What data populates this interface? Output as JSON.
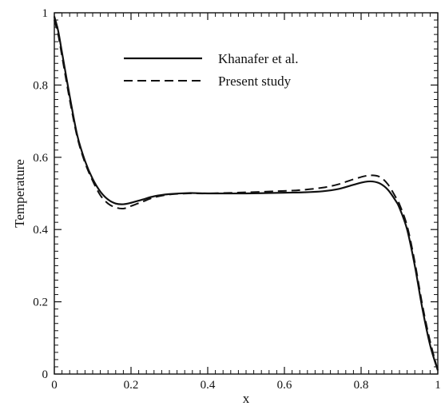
{
  "chart_data": {
    "type": "line",
    "xlabel": "x",
    "ylabel": "Temperature",
    "xlim": [
      0,
      1
    ],
    "ylim": [
      0,
      1
    ],
    "x_ticks": [
      "0",
      "0.2",
      "0.4",
      "0.6",
      "0.8",
      "1"
    ],
    "y_ticks": [
      "0",
      "0.2",
      "0.4",
      "0.6",
      "0.8",
      "1"
    ],
    "grid": false,
    "legend_position": "top-center",
    "series": [
      {
        "name": "Khanafer et al.",
        "style": "solid",
        "color": "#111111",
        "x": [
          0,
          0.01,
          0.02,
          0.04,
          0.06,
          0.08,
          0.1,
          0.12,
          0.14,
          0.16,
          0.18,
          0.2,
          0.23,
          0.26,
          0.3,
          0.35,
          0.4,
          0.5,
          0.6,
          0.65,
          0.7,
          0.74,
          0.78,
          0.81,
          0.83,
          0.85,
          0.87,
          0.89,
          0.9,
          0.92,
          0.94,
          0.96,
          0.98,
          1.0
        ],
        "y": [
          0.99,
          0.95,
          0.89,
          0.77,
          0.66,
          0.59,
          0.54,
          0.505,
          0.483,
          0.472,
          0.47,
          0.474,
          0.483,
          0.492,
          0.498,
          0.501,
          0.5,
          0.5,
          0.502,
          0.503,
          0.506,
          0.512,
          0.524,
          0.532,
          0.533,
          0.527,
          0.51,
          0.48,
          0.46,
          0.4,
          0.3,
          0.18,
          0.08,
          0.01
        ]
      },
      {
        "name": "Present study",
        "style": "dashed",
        "color": "#111111",
        "x": [
          0,
          0.01,
          0.02,
          0.04,
          0.06,
          0.08,
          0.1,
          0.12,
          0.14,
          0.16,
          0.18,
          0.2,
          0.23,
          0.26,
          0.3,
          0.35,
          0.4,
          0.5,
          0.6,
          0.65,
          0.7,
          0.74,
          0.78,
          0.81,
          0.83,
          0.85,
          0.87,
          0.89,
          0.9,
          0.92,
          0.94,
          0.96,
          0.98,
          1.0
        ],
        "y": [
          0.98,
          0.94,
          0.88,
          0.76,
          0.655,
          0.585,
          0.535,
          0.495,
          0.472,
          0.461,
          0.458,
          0.465,
          0.477,
          0.489,
          0.497,
          0.5,
          0.5,
          0.503,
          0.507,
          0.51,
          0.516,
          0.525,
          0.539,
          0.548,
          0.55,
          0.545,
          0.525,
          0.49,
          0.47,
          0.41,
          0.31,
          0.19,
          0.09,
          0.01
        ]
      }
    ]
  }
}
